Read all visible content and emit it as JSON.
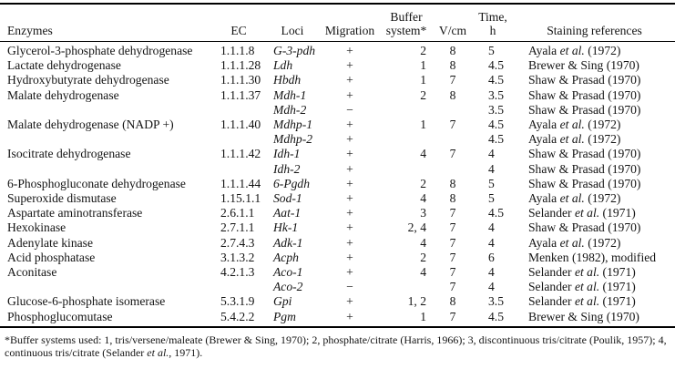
{
  "table": {
    "headers": {
      "enzymes": "Enzymes",
      "ec": "EC",
      "loci": "Loci",
      "migration": "Migration",
      "buffer_line1": "Buffer",
      "buffer_line2": "system*",
      "vcm": "V/cm",
      "time_line1": "Time,",
      "time_line2": "h",
      "staining": "Staining references"
    },
    "rows": [
      {
        "enzyme": "Glycerol-3-phosphate dehydrogenase",
        "ec": "1.1.1.8",
        "locus": "G-3-pdh",
        "migration": "+",
        "buffer": "2",
        "vcm": "8",
        "time": "5",
        "ref": "Ayala et al. (1972)"
      },
      {
        "enzyme": "Lactate dehydrogenase",
        "ec": "1.1.1.28",
        "locus": "Ldh",
        "migration": "+",
        "buffer": "1",
        "vcm": "8",
        "time": "4.5",
        "ref": "Brewer & Sing (1970)"
      },
      {
        "enzyme": "Hydroxybutyrate dehydrogenase",
        "ec": "1.1.1.30",
        "locus": "Hbdh",
        "migration": "+",
        "buffer": "1",
        "vcm": "7",
        "time": "4.5",
        "ref": "Shaw & Prasad (1970)"
      },
      {
        "enzyme": "Malate dehydrogenase",
        "ec": "1.1.1.37",
        "locus": "Mdh-1",
        "migration": "+",
        "buffer": "2",
        "vcm": "8",
        "time": "3.5",
        "ref": "Shaw & Prasad (1970)"
      },
      {
        "enzyme": "",
        "ec": "",
        "locus": "Mdh-2",
        "migration": "−",
        "buffer": "",
        "vcm": "",
        "time": "3.5",
        "ref": "Shaw & Prasad (1970)"
      },
      {
        "enzyme": "Malate dehydrogenase (NADP +)",
        "ec": "1.1.1.40",
        "locus": "Mdhp-1",
        "migration": "+",
        "buffer": "1",
        "vcm": "7",
        "time": "4.5",
        "ref": "Ayala et al. (1972)"
      },
      {
        "enzyme": "",
        "ec": "",
        "locus": "Mdhp-2",
        "migration": "+",
        "buffer": "",
        "vcm": "",
        "time": "4.5",
        "ref": "Ayala et al. (1972)"
      },
      {
        "enzyme": "Isocitrate dehydrogenase",
        "ec": "1.1.1.42",
        "locus": "Idh-1",
        "migration": "+",
        "buffer": "4",
        "vcm": "7",
        "time": "4",
        "ref": "Shaw & Prasad (1970)"
      },
      {
        "enzyme": "",
        "ec": "",
        "locus": "Idh-2",
        "migration": "+",
        "buffer": "",
        "vcm": "",
        "time": "4",
        "ref": "Shaw & Prasad (1970)"
      },
      {
        "enzyme": "6-Phosphogluconate dehydrogenase",
        "ec": "1.1.1.44",
        "locus": "6-Pgdh",
        "migration": "+",
        "buffer": "2",
        "vcm": "8",
        "time": "5",
        "ref": "Shaw & Prasad (1970)"
      },
      {
        "enzyme": "Superoxide dismutase",
        "ec": "1.15.1.1",
        "locus": "Sod-1",
        "migration": "+",
        "buffer": "4",
        "vcm": "8",
        "time": "5",
        "ref": "Ayala et al. (1972)"
      },
      {
        "enzyme": "Aspartate aminotransferase",
        "ec": "2.6.1.1",
        "locus": "Aat-1",
        "migration": "+",
        "buffer": "3",
        "vcm": "7",
        "time": "4.5",
        "ref": "Selander et al. (1971)"
      },
      {
        "enzyme": "Hexokinase",
        "ec": "2.7.1.1",
        "locus": "Hk-1",
        "migration": "+",
        "buffer": "2, 4",
        "vcm": "7",
        "time": "4",
        "ref": "Shaw & Prasad (1970)"
      },
      {
        "enzyme": "Adenylate kinase",
        "ec": "2.7.4.3",
        "locus": "Adk-1",
        "migration": "+",
        "buffer": "4",
        "vcm": "7",
        "time": "4",
        "ref": "Ayala et al. (1972)"
      },
      {
        "enzyme": "Acid phosphatase",
        "ec": "3.1.3.2",
        "locus": "Acph",
        "migration": "+",
        "buffer": "2",
        "vcm": "7",
        "time": "6",
        "ref": "Menken (1982), modified"
      },
      {
        "enzyme": "Aconitase",
        "ec": "4.2.1.3",
        "locus": "Aco-1",
        "migration": "+",
        "buffer": "4",
        "vcm": "7",
        "time": "4",
        "ref": "Selander et al. (1971)"
      },
      {
        "enzyme": "",
        "ec": "",
        "locus": "Aco-2",
        "migration": "−",
        "buffer": "",
        "vcm": "7",
        "time": "4",
        "ref": "Selander et al. (1971)"
      },
      {
        "enzyme": "Glucose-6-phosphate isomerase",
        "ec": "5.3.1.9",
        "locus": "Gpi",
        "migration": "+",
        "buffer": "1, 2",
        "vcm": "8",
        "time": "3.5",
        "ref": "Selander et al. (1971)"
      },
      {
        "enzyme": "Phosphoglucomutase",
        "ec": "5.4.2.2",
        "locus": "Pgm",
        "migration": "+",
        "buffer": "1",
        "vcm": "7",
        "time": "4.5",
        "ref": "Brewer & Sing (1970)"
      }
    ]
  },
  "footnote": "*Buffer systems used: 1, tris/versene/maleate (Brewer & Sing, 1970); 2, phosphate/citrate (Harris, 1966); 3, discontinuous tris/citrate (Poulik, 1957); 4, continuous tris/citrate (Selander et al., 1971)."
}
